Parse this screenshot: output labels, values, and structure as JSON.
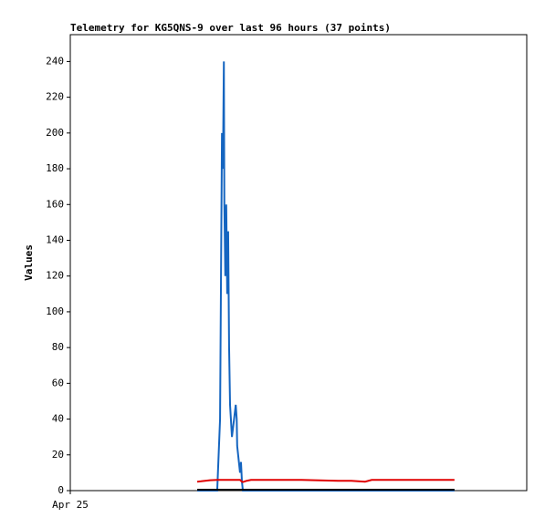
{
  "chart_data": {
    "type": "line",
    "title": "Telemetry for KG5QNS-9 over last 96 hours (37 points)",
    "y_label": "Values",
    "x": [
      26.7,
      27.5,
      29.4,
      30.9,
      31.5,
      31.7,
      31.9,
      32.1,
      32.3,
      32.4,
      32.6,
      32.8,
      33.0,
      33.2,
      33.4,
      33.6,
      34.0,
      34.8,
      35.0,
      35.1,
      35.5,
      35.7,
      35.9,
      36.1,
      36.3,
      37.1,
      38.0,
      40.9,
      48.6,
      56.3,
      59.1,
      62.0,
      63.4,
      65.9,
      71.6,
      76.4,
      80.8
    ],
    "series": [
      {
        "color": "#1565c0",
        "values": [
          0,
          0,
          0,
          0,
          40,
          120,
          200,
          180,
          240,
          160,
          120,
          160,
          110,
          145,
          80,
          48,
          30,
          48,
          40,
          25,
          15,
          10,
          16,
          5,
          0,
          0,
          0,
          0,
          0,
          0,
          0,
          0,
          0,
          0,
          0,
          0,
          0
        ]
      },
      {
        "color": "#e00000",
        "values": [
          5,
          5.2,
          5.8,
          6,
          6,
          6,
          6,
          6,
          6,
          6,
          6,
          6,
          6,
          6,
          6,
          6,
          6,
          6,
          6,
          6,
          6,
          6,
          5.5,
          5,
          4.8,
          5.5,
          6,
          6,
          6,
          5.5,
          5.5,
          5,
          6,
          6,
          6,
          6,
          6
        ]
      },
      {
        "color": "#000000",
        "values": [
          0.5,
          0.5,
          0.5,
          0.5,
          0.5,
          0.5,
          0.5,
          0.5,
          0.5,
          0.5,
          0.5,
          0.5,
          0.5,
          0.5,
          0.5,
          0.5,
          0.5,
          0.5,
          0.5,
          0.5,
          0.5,
          0.5,
          0.5,
          0.5,
          0.5,
          0.5,
          0.5,
          0.5,
          0.5,
          0.5,
          0.5,
          0.5,
          0.5,
          0.5,
          0.5,
          0.5,
          0.5
        ]
      }
    ],
    "xlim": [
      0,
      96
    ],
    "xticks": [
      {
        "value": 0,
        "label": "Apr 25"
      }
    ],
    "ylim": [
      0,
      255
    ],
    "yticks": [
      0,
      20,
      40,
      60,
      80,
      100,
      120,
      140,
      160,
      180,
      200,
      220,
      240
    ]
  }
}
